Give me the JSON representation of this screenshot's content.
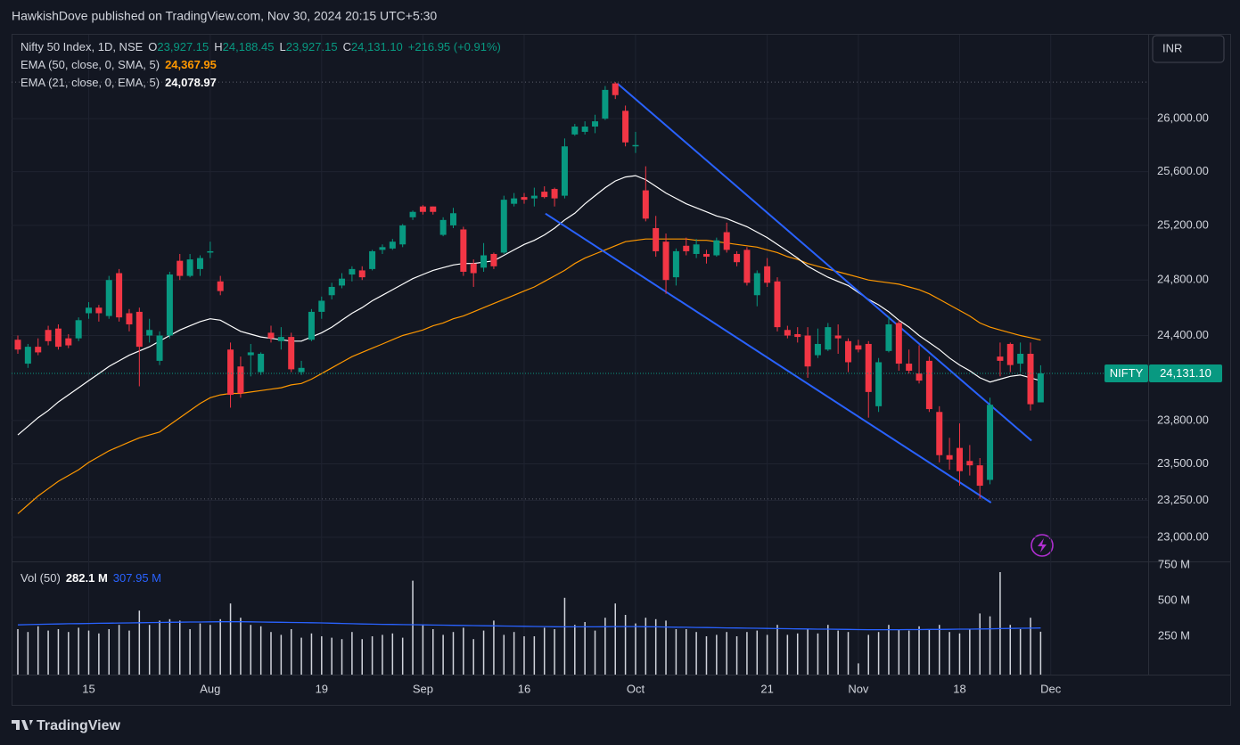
{
  "header": {
    "text": "HawkishDove published on TradingView.com, Nov 30, 2024 20:15 UTC+5:30"
  },
  "currency": "INR",
  "footer": {
    "brand": "TradingView"
  },
  "chart_data": {
    "type": "candlestick",
    "legend": {
      "symbol": "Nifty 50 Index, 1D, NSE",
      "items": [
        {
          "key": "O",
          "text": "23,927.15"
        },
        {
          "key": "H",
          "text": "24,188.45"
        },
        {
          "key": "L",
          "text": "23,927.15"
        },
        {
          "key": "C",
          "text": "24,131.10"
        }
      ],
      "change": "+216.95 (+0.91%)"
    },
    "price_tag": {
      "name": "NIFTY"
    },
    "log_scale": true,
    "grid": true,
    "up_color": "#089981",
    "down_color": "#f23645",
    "ylim": [
      22850,
      26640
    ],
    "yticks": [
      {
        "value": 23000,
        "label": "23,000.00"
      },
      {
        "value": 23250,
        "label": "23,250.00"
      },
      {
        "value": 23500,
        "label": "23,500.00"
      },
      {
        "value": 23800,
        "label": "23,800.00"
      },
      {
        "value": 24400,
        "label": "24,400.00"
      },
      {
        "value": 24800,
        "label": "24,800.00"
      },
      {
        "value": 25200,
        "label": "25,200.00"
      },
      {
        "value": 25600,
        "label": "25,600.00"
      },
      {
        "value": 26000,
        "label": "26,000.00"
      }
    ],
    "categories": [
      null,
      null,
      null,
      null,
      null,
      null,
      null,
      "15",
      null,
      null,
      null,
      null,
      null,
      null,
      null,
      null,
      null,
      null,
      null,
      "Aug",
      null,
      null,
      null,
      null,
      null,
      null,
      null,
      null,
      null,
      null,
      "19",
      null,
      null,
      null,
      null,
      null,
      null,
      null,
      null,
      null,
      "Sep",
      null,
      null,
      null,
      null,
      null,
      null,
      null,
      null,
      null,
      "16",
      null,
      null,
      null,
      null,
      null,
      null,
      null,
      null,
      null,
      null,
      "Oct",
      null,
      null,
      null,
      null,
      null,
      null,
      null,
      null,
      null,
      null,
      null,
      null,
      "21",
      null,
      null,
      null,
      null,
      null,
      null,
      null,
      null,
      "Nov",
      null,
      null,
      null,
      null,
      null,
      null,
      null,
      null,
      null,
      "18",
      null,
      null,
      null,
      null,
      null,
      null,
      null,
      null,
      "Dec"
    ],
    "open": [
      24370,
      24200,
      24320,
      24440,
      24450,
      24380,
      24380,
      24560,
      24600,
      24540,
      24850,
      24560,
      24570,
      24400,
      24220,
      24400,
      24940,
      24830,
      24880,
      25000,
      24790,
      24300,
      24180,
      24260,
      24140,
      24420,
      24360,
      24390,
      24140,
      24370,
      24570,
      24690,
      24760,
      24840,
      24870,
      24880,
      25020,
      25030,
      25060,
      25260,
      25340,
      25340,
      25130,
      25200,
      25170,
      24920,
      24890,
      24990,
      25000,
      25360,
      25410,
      25400,
      25450,
      25470,
      25420,
      25880,
      25900,
      25940,
      26000,
      26270,
      26060,
      25790,
      25460,
      25180,
      25080,
      24820,
      25050,
      24990,
      24990,
      24980,
      25150,
      24990,
      25020,
      24690,
      24900,
      24790,
      24440,
      24410,
      24400,
      24260,
      24300,
      24400,
      24360,
      24330,
      24340,
      23900,
      24290,
      24490,
      24200,
      24130,
      24220,
      23860,
      23560,
      23610,
      23520,
      23490,
      23390,
      24250,
      24340,
      24200,
      24270,
      23927.15,
      null
    ],
    "high": [
      24400,
      24340,
      24380,
      24470,
      24480,
      24410,
      24530,
      24640,
      24620,
      24830,
      24880,
      24590,
      24600,
      24520,
      24430,
      24860,
      24990,
      24990,
      24980,
      25080,
      24830,
      24350,
      24250,
      24340,
      24280,
      24470,
      24460,
      24420,
      24220,
      24590,
      24680,
      24780,
      24850,
      24900,
      24900,
      25020,
      25060,
      25100,
      25210,
      25310,
      25350,
      25340,
      25260,
      25330,
      25190,
      24950,
      25070,
      25000,
      25420,
      25440,
      25440,
      25480,
      25490,
      25480,
      25850,
      25960,
      25980,
      26030,
      26250,
      26280,
      26100,
      25900,
      25640,
      25270,
      25140,
      25030,
      25110,
      25100,
      25020,
      25110,
      25220,
      25010,
      25040,
      24870,
      24960,
      24820,
      24470,
      24460,
      24460,
      24450,
      24490,
      24480,
      24380,
      24370,
      24360,
      24240,
      24540,
      24510,
      24300,
      24330,
      24250,
      23900,
      23680,
      23780,
      23630,
      23540,
      23960,
      24350,
      24350,
      24350,
      24350,
      24188.45,
      null
    ],
    "low": [
      24270,
      24170,
      24260,
      24330,
      24300,
      24310,
      24360,
      24520,
      24500,
      24520,
      24500,
      24430,
      24040,
      24350,
      24190,
      24380,
      24800,
      24820,
      24830,
      24960,
      24690,
      23890,
      23960,
      24110,
      24120,
      24350,
      24300,
      24140,
      24120,
      24360,
      24520,
      24660,
      24740,
      24790,
      24800,
      24870,
      24990,
      25020,
      25040,
      25240,
      25280,
      25280,
      25120,
      25180,
      24830,
      24750,
      24860,
      24880,
      24990,
      25340,
      25360,
      25340,
      25400,
      25340,
      25400,
      25870,
      25880,
      25890,
      25990,
      26150,
      25790,
      25740,
      25230,
      24970,
      24700,
      24760,
      24980,
      24960,
      24920,
      24970,
      25000,
      24900,
      24760,
      24610,
      24750,
      24430,
      24380,
      24350,
      24100,
      24240,
      24290,
      24270,
      24140,
      24280,
      23820,
      23860,
      24280,
      24150,
      24130,
      24060,
      23860,
      23510,
      23460,
      23350,
      23420,
      23260,
      23360,
      24110,
      24140,
      24140,
      23870,
      23927.15,
      null
    ],
    "close": [
      24300,
      24320,
      24280,
      24360,
      24320,
      24330,
      24510,
      24600,
      24560,
      24800,
      24530,
      24480,
      24320,
      24440,
      24400,
      24840,
      24830,
      24950,
      24960,
      25010,
      24720,
      23980,
      23990,
      24280,
      24270,
      24380,
      24390,
      24160,
      24170,
      24570,
      24650,
      24750,
      24810,
      24880,
      24820,
      25010,
      25040,
      25080,
      25200,
      25300,
      25300,
      25300,
      25240,
      25290,
      24860,
      24850,
      24980,
      24900,
      25390,
      25400,
      25390,
      25420,
      25410,
      25400,
      25790,
      25940,
      25940,
      25980,
      26220,
      26180,
      25820,
      25800,
      25250,
      25010,
      24800,
      25010,
      25010,
      25060,
      24970,
      25090,
      25020,
      24930,
      24780,
      24850,
      24780,
      24460,
      24400,
      24390,
      24180,
      24340,
      24460,
      24380,
      24210,
      24300,
      24000,
      24210,
      24480,
      24200,
      24150,
      24080,
      23880,
      23560,
      23530,
      23450,
      23490,
      23350,
      23910,
      24220,
      24190,
      24270,
      23914.15,
      24131.1,
      null
    ],
    "series": [
      {
        "name": "EMA (50, close, 0, SMA, 5)",
        "color": "#ff9800",
        "value_label": "24,367.95",
        "values": [
          23160,
          23220,
          23280,
          23330,
          23380,
          23420,
          23460,
          23510,
          23550,
          23590,
          23620,
          23650,
          23680,
          23700,
          23720,
          23770,
          23820,
          23870,
          23920,
          23960,
          23980,
          23990,
          23990,
          24000,
          24010,
          24020,
          24030,
          24050,
          24060,
          24090,
          24130,
          24170,
          24210,
          24250,
          24280,
          24310,
          24340,
          24370,
          24400,
          24420,
          24440,
          24470,
          24490,
          24520,
          24540,
          24570,
          24600,
          24630,
          24660,
          24690,
          24720,
          24750,
          24790,
          24830,
          24870,
          24920,
          24960,
          24990,
          25020,
          25050,
          25080,
          25090,
          25100,
          25100,
          25100,
          25100,
          25100,
          25090,
          25090,
          25080,
          25070,
          25060,
          25050,
          25040,
          25020,
          25000,
          24970,
          24950,
          24920,
          24900,
          24880,
          24860,
          24840,
          24820,
          24800,
          24790,
          24780,
          24770,
          24750,
          24730,
          24700,
          24660,
          24620,
          24580,
          24540,
          24490,
          24460,
          24440,
          24420,
          24400,
          24385,
          24367.95,
          null
        ]
      },
      {
        "name": "EMA (21, close, 0, EMA, 5)",
        "color": "#ffffff",
        "value_label": "24,078.97",
        "values": [
          23700,
          23760,
          23820,
          23870,
          23930,
          23980,
          24030,
          24080,
          24130,
          24180,
          24220,
          24260,
          24290,
          24320,
          24360,
          24400,
          24440,
          24470,
          24500,
          24520,
          24510,
          24470,
          24430,
          24410,
          24390,
          24380,
          24370,
          24360,
          24360,
          24390,
          24420,
          24460,
          24510,
          24560,
          24600,
          24650,
          24690,
          24730,
          24770,
          24810,
          24840,
          24870,
          24890,
          24910,
          24920,
          24920,
          24930,
          24940,
          24980,
          25020,
          25060,
          25090,
          25130,
          25180,
          25240,
          25290,
          25360,
          25420,
          25480,
          25530,
          25560,
          25570,
          25540,
          25490,
          25440,
          25400,
          25360,
          25330,
          25300,
          25270,
          25250,
          25220,
          25190,
          25150,
          25110,
          25060,
          25010,
          24960,
          24900,
          24860,
          24820,
          24790,
          24760,
          24710,
          24660,
          24620,
          24570,
          24510,
          24460,
          24400,
          24350,
          24300,
          24240,
          24190,
          24150,
          24100,
          24070,
          24090,
          24110,
          24120,
          24100,
          24078.97,
          null
        ]
      }
    ],
    "trendlines": [
      {
        "color": "#2962ff",
        "x": [
          59.2,
          100.1
        ],
        "y": [
          26270,
          23660
        ]
      },
      {
        "color": "#2962ff",
        "x": [
          52.1,
          96.1
        ],
        "y": [
          25287,
          23235
        ]
      }
    ],
    "volume": {
      "name": "Vol (50)",
      "value_label": "282.1 M",
      "color": "#d1d4dc",
      "ylim": [
        0,
        775
      ],
      "yticks": [
        {
          "value": 250,
          "label": "250 M"
        },
        {
          "value": 500,
          "label": "500 M"
        },
        {
          "value": 750,
          "label": "750 M"
        }
      ],
      "values": [
        300,
        280,
        320,
        290,
        300,
        280,
        310,
        290,
        270,
        300,
        330,
        290,
        430,
        330,
        360,
        370,
        360,
        300,
        340,
        330,
        370,
        480,
        380,
        330,
        320,
        280,
        260,
        300,
        240,
        270,
        250,
        240,
        230,
        280,
        230,
        250,
        260,
        270,
        240,
        640,
        330,
        300,
        260,
        280,
        310,
        230,
        290,
        360,
        260,
        280,
        250,
        250,
        310,
        300,
        520,
        330,
        350,
        290,
        380,
        480,
        400,
        340,
        380,
        370,
        360,
        300,
        300,
        280,
        250,
        260,
        280,
        250,
        280,
        290,
        260,
        330,
        260,
        270,
        300,
        270,
        330,
        290,
        280,
        60,
        260,
        280,
        330,
        300,
        290,
        320,
        300,
        330,
        280,
        270,
        300,
        410,
        390,
        700,
        330,
        300,
        380,
        282.1,
        null
      ],
      "ma": {
        "color": "#2962ff",
        "value_label": "307.95 M",
        "values": [
          330,
          332,
          334,
          335,
          336,
          338,
          339,
          340,
          341,
          342,
          343,
          344,
          345,
          346,
          347,
          348,
          349,
          350,
          350,
          351,
          352,
          352,
          352,
          351,
          350,
          349,
          348,
          347,
          346,
          345,
          344,
          342,
          340,
          338,
          336,
          335,
          334,
          333,
          332,
          331,
          330,
          329,
          328,
          327,
          326,
          325,
          324,
          323,
          322,
          321,
          320,
          319,
          318,
          317,
          316,
          316,
          316,
          316,
          317,
          318,
          318,
          318,
          317,
          316,
          315,
          314,
          313,
          312,
          311,
          310,
          309,
          308,
          307,
          306,
          305,
          304,
          303,
          302,
          301,
          300,
          300,
          299,
          298,
          297,
          296,
          296,
          296,
          296,
          297,
          297,
          298,
          298,
          299,
          300,
          300,
          301,
          302,
          304,
          305,
          306,
          307,
          307.95,
          null
        ]
      }
    }
  }
}
